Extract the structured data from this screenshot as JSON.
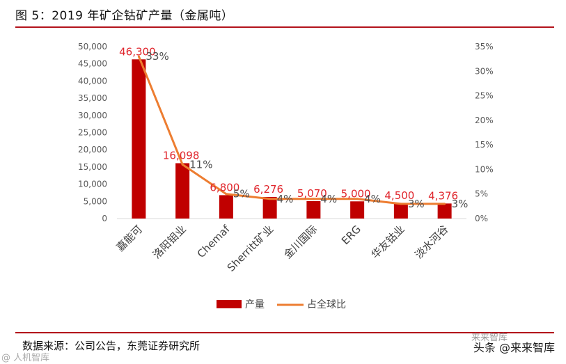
{
  "header": {
    "title": "图 5：2019 年矿企钴矿产量（金属吨）"
  },
  "footer": {
    "source": "数据来源：公司公告，东莞证券研究所",
    "watermark_right": "头条 @来来智库",
    "watermark_left": "@ 人机智库",
    "watermark_top": "来来智库"
  },
  "chart_data": {
    "type": "bar",
    "categories": [
      "嘉能可",
      "洛阳钼业",
      "Chemaf",
      "Sherritt矿业",
      "金川国际",
      "ERG",
      "华友钴业",
      "淡水河谷"
    ],
    "series": [
      {
        "name": "产量",
        "type": "bar",
        "axis": "left",
        "color": "#c00000",
        "values": [
          46300,
          16098,
          6800,
          6276,
          5070,
          5000,
          4500,
          4376
        ],
        "labels": [
          "46,300",
          "16,098",
          "6,800",
          "6,276",
          "5,070",
          "5,000",
          "4,500",
          "4,376"
        ]
      },
      {
        "name": "占全球比",
        "type": "line",
        "axis": "right",
        "color": "#ed7d31",
        "values": [
          33,
          11,
          5,
          4,
          4,
          4,
          3,
          3
        ],
        "labels": [
          "33%",
          "11%",
          "5%",
          "4%",
          "4%",
          "4%",
          "3%",
          "3%"
        ]
      }
    ],
    "y_left": {
      "min": 0,
      "max": 50000,
      "step": 5000,
      "ticks": [
        "0",
        "5,000",
        "10,000",
        "15,000",
        "20,000",
        "25,000",
        "30,000",
        "35,000",
        "40,000",
        "45,000",
        "50,000"
      ]
    },
    "y_right": {
      "min": 0,
      "max": 35,
      "step": 5,
      "ticks": [
        "0%",
        "5%",
        "10%",
        "15%",
        "20%",
        "25%",
        "30%",
        "35%"
      ]
    },
    "legend": {
      "position": "bottom"
    },
    "grid": false
  }
}
